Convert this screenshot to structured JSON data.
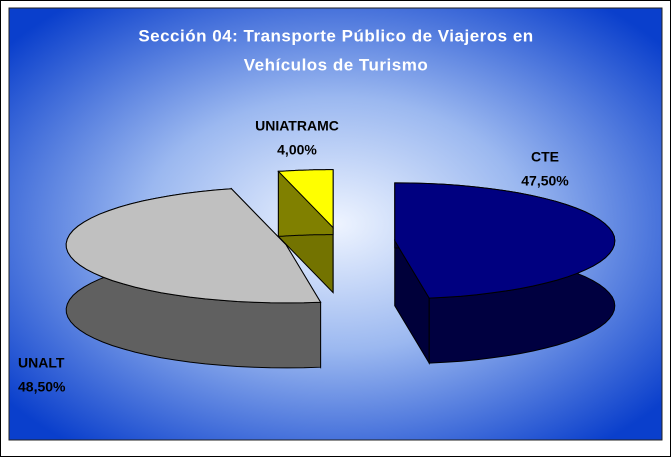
{
  "chart_data": {
    "type": "pie",
    "title": [
      "Sección 04: Transporte Público de Viajeros en",
      "Vehículos de Turismo"
    ],
    "categories": [
      "CTE",
      "UNALT",
      "UNIATRAMC"
    ],
    "values": [
      47.5,
      48.5,
      4.0
    ],
    "value_labels": [
      "47,50%",
      "48,50%",
      "4,00%"
    ],
    "colors": [
      "#000080",
      "#c0c0c0",
      "#ffff00"
    ],
    "style": "3d-exploded"
  }
}
